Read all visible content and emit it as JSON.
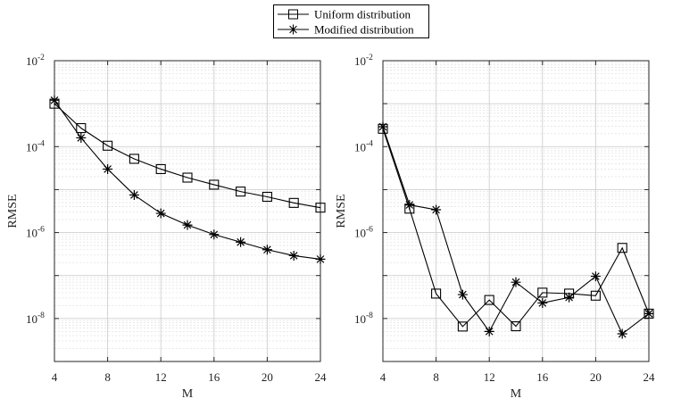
{
  "legend": {
    "entries": [
      {
        "label": "Uniform distribution",
        "marker": "square-icon"
      },
      {
        "label": "Modified distribution",
        "marker": "asterisk-icon"
      }
    ]
  },
  "chart_data": [
    {
      "type": "line",
      "xlabel": "M",
      "ylabel": "RMSE",
      "x": [
        4,
        6,
        8,
        10,
        12,
        14,
        16,
        18,
        20,
        22,
        24
      ],
      "xticks": [
        4,
        8,
        12,
        16,
        20,
        24
      ],
      "xtick_labels": [
        "4",
        "8",
        "12",
        "16",
        "20",
        "24"
      ],
      "xlim": [
        4,
        24
      ],
      "yscale": "log",
      "ylim": [
        1e-09,
        0.01
      ],
      "ytick_labels": [
        {
          "base": "10",
          "exp": "-2"
        },
        {
          "base": "10",
          "exp": "-4"
        },
        {
          "base": "10",
          "exp": "-6"
        },
        {
          "base": "10",
          "exp": "-8"
        }
      ],
      "grid": true,
      "series": [
        {
          "name": "Uniform distribution",
          "marker": "square",
          "values": [
            0.001,
            0.00027,
            0.000105,
            5.2e-05,
            3e-05,
            1.9e-05,
            1.3e-05,
            9e-06,
            6.8e-06,
            4.9e-06,
            3.8e-06
          ]
        },
        {
          "name": "Modified distribution",
          "marker": "asterisk",
          "values": [
            0.0012,
            0.00016,
            3e-05,
            7.5e-06,
            2.8e-06,
            1.5e-06,
            9e-07,
            6e-07,
            4e-07,
            2.9e-07,
            2.4e-07
          ]
        }
      ]
    },
    {
      "type": "line",
      "xlabel": "M",
      "ylabel": "RMSE",
      "x": [
        4,
        6,
        8,
        10,
        12,
        14,
        16,
        18,
        20,
        22,
        24
      ],
      "xticks": [
        4,
        8,
        12,
        16,
        20,
        24
      ],
      "xtick_labels": [
        "4",
        "8",
        "12",
        "16",
        "20",
        "24"
      ],
      "xlim": [
        4,
        24
      ],
      "yscale": "log",
      "ylim": [
        1e-09,
        0.01
      ],
      "ytick_labels": [
        {
          "base": "10",
          "exp": "-2"
        },
        {
          "base": "10",
          "exp": "-4"
        },
        {
          "base": "10",
          "exp": "-6"
        },
        {
          "base": "10",
          "exp": "-8"
        }
      ],
      "grid": true,
      "series": [
        {
          "name": "Uniform distribution",
          "marker": "square",
          "values": [
            0.00026,
            3.6e-06,
            3.8e-08,
            6.5e-09,
            2.7e-08,
            6.6e-09,
            4e-08,
            3.8e-08,
            3.4e-08,
            4.4e-07,
            1.3e-08
          ]
        },
        {
          "name": "Modified distribution",
          "marker": "asterisk",
          "values": [
            0.00029,
            4.4e-06,
            3.4e-06,
            3.6e-08,
            5e-09,
            7e-08,
            2.3e-08,
            3.1e-08,
            9.6e-08,
            4.4e-09,
            1.3e-08
          ]
        }
      ]
    }
  ]
}
